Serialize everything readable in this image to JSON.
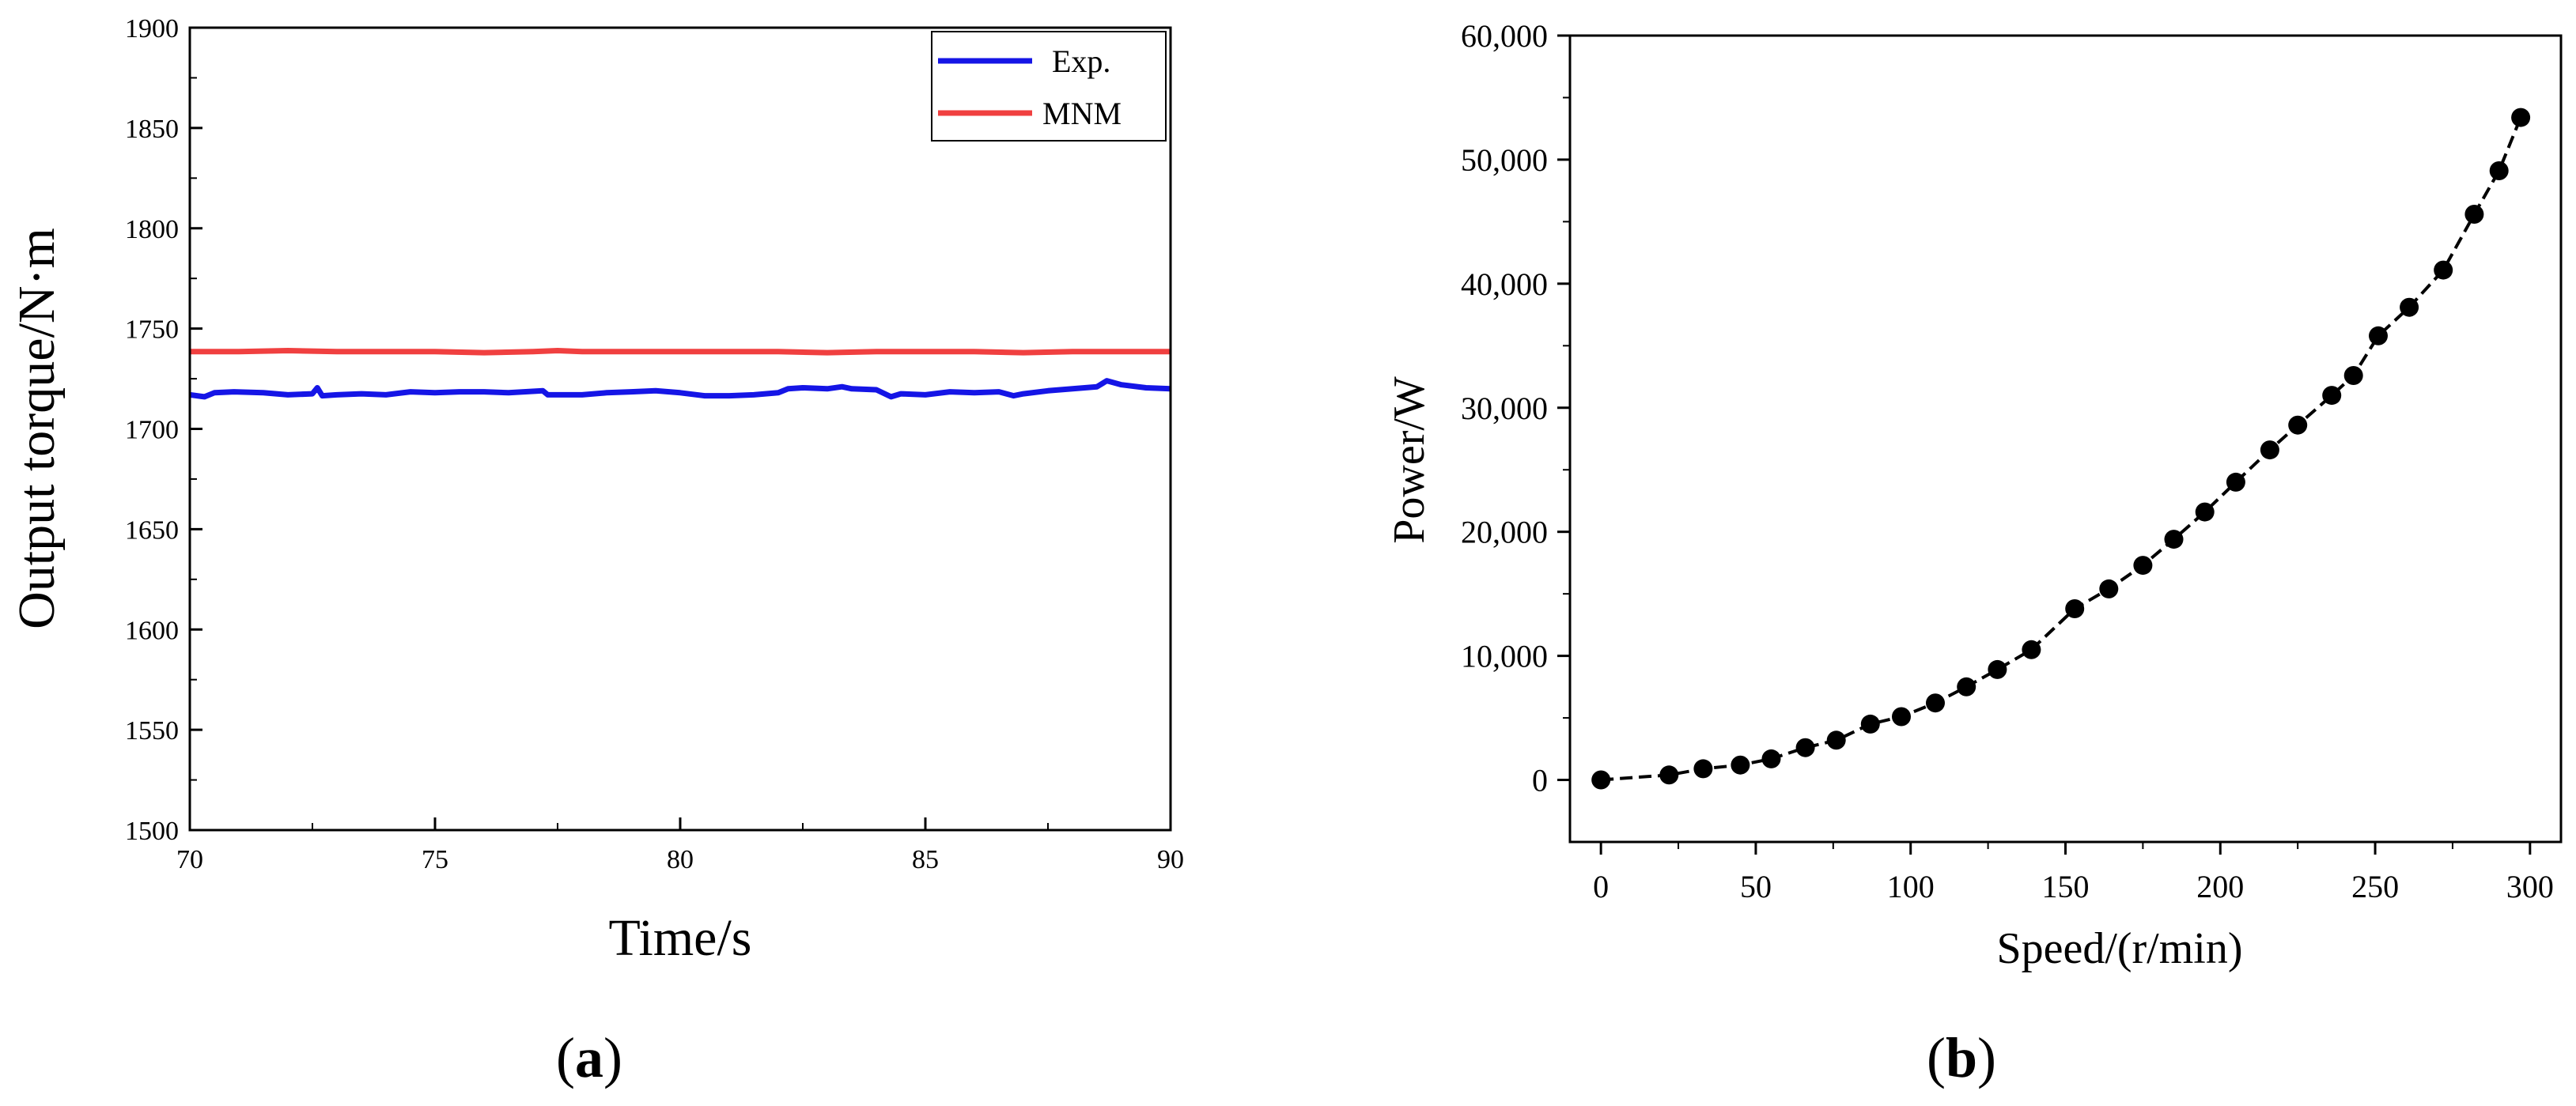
{
  "chart_data": [
    {
      "type": "line",
      "panel_label": {
        "open": "(",
        "letter": "a",
        "close": ")"
      },
      "title": "",
      "xlabel": "Time/s",
      "ylabel": "Output torque/N·m",
      "xlim": [
        70,
        90
      ],
      "ylim": [
        1500,
        1900
      ],
      "xticks": [
        "70",
        "75",
        "80",
        "85",
        "90"
      ],
      "yticks": [
        "1500",
        "1550",
        "1600",
        "1650",
        "1700",
        "1750",
        "1800",
        "1850",
        "1900"
      ],
      "legend_position": "top-right",
      "series": [
        {
          "name": "Exp.",
          "color": "#1515e6",
          "x": [
            70.0,
            70.3,
            70.5,
            70.9,
            71.5,
            72.0,
            72.5,
            72.6,
            72.7,
            73.0,
            73.5,
            74.0,
            74.5,
            75.0,
            75.5,
            76.0,
            76.5,
            77.2,
            77.3,
            77.5,
            78.0,
            78.5,
            79.0,
            79.5,
            80.0,
            80.5,
            81.0,
            81.5,
            82.0,
            82.2,
            82.5,
            83.0,
            83.3,
            83.5,
            84.0,
            84.3,
            84.5,
            85.0,
            85.5,
            86.0,
            86.5,
            86.8,
            87.0,
            87.5,
            88.0,
            88.5,
            88.7,
            89.0,
            89.5,
            90.0
          ],
          "values": [
            1717.0,
            1716.0,
            1718.0,
            1718.5,
            1718.0,
            1717.0,
            1717.5,
            1720.5,
            1716.5,
            1717.0,
            1717.5,
            1717.0,
            1718.5,
            1718.0,
            1718.5,
            1718.5,
            1718.0,
            1719.0,
            1717.0,
            1717.0,
            1717.0,
            1718.0,
            1718.5,
            1719.0,
            1718.0,
            1716.5,
            1716.5,
            1717.0,
            1718.0,
            1720.0,
            1720.5,
            1720.0,
            1721.0,
            1720.0,
            1719.5,
            1716.0,
            1717.5,
            1717.0,
            1718.5,
            1718.0,
            1718.5,
            1716.5,
            1717.5,
            1719.0,
            1720.0,
            1721.0,
            1724.0,
            1722.0,
            1720.5,
            1720.0
          ]
        },
        {
          "name": "MNM",
          "color": "#f04040",
          "x": [
            70.0,
            71.0,
            72.0,
            73.0,
            74.0,
            75.0,
            76.0,
            77.0,
            77.5,
            78.0,
            79.0,
            80.0,
            81.0,
            82.0,
            83.0,
            84.0,
            85.0,
            86.0,
            87.0,
            88.0,
            89.0,
            90.0
          ],
          "values": [
            1738.5,
            1738.5,
            1739.0,
            1738.5,
            1738.5,
            1738.5,
            1738.0,
            1738.5,
            1739.0,
            1738.5,
            1738.5,
            1738.5,
            1738.5,
            1738.5,
            1738.0,
            1738.5,
            1738.5,
            1738.5,
            1738.0,
            1738.5,
            1738.5,
            1738.5
          ]
        }
      ]
    },
    {
      "type": "line",
      "panel_label": {
        "open": "(",
        "letter": "b",
        "close": ")"
      },
      "title": "",
      "xlabel": "Speed/(r/min)",
      "ylabel": "Power/W",
      "xlim": [
        -10,
        310
      ],
      "ylim": [
        -5000,
        60000
      ],
      "xticks": [
        "0",
        "50",
        "100",
        "150",
        "200",
        "250",
        "300"
      ],
      "yticks": [
        "0",
        "10,000",
        "20,000",
        "30,000",
        "40,000",
        "50,000",
        "60,000"
      ],
      "series": [
        {
          "name": "Power",
          "color": "#000000",
          "marker": "circle",
          "line_style": "dashed",
          "x": [
            0,
            22,
            33,
            45,
            55,
            66,
            76,
            87,
            97,
            108,
            118,
            128,
            139,
            153,
            164,
            175,
            185,
            195,
            205,
            216,
            225,
            236,
            243,
            251,
            261,
            272,
            282,
            290,
            297
          ],
          "values": [
            0,
            400,
            900,
            1200,
            1700,
            2600,
            3200,
            4500,
            5100,
            6200,
            7500,
            8900,
            10500,
            13800,
            15400,
            17300,
            19400,
            21600,
            24000,
            26600,
            28600,
            31000,
            32600,
            35800,
            38100,
            41100,
            45600,
            49100,
            53400
          ]
        }
      ]
    }
  ]
}
